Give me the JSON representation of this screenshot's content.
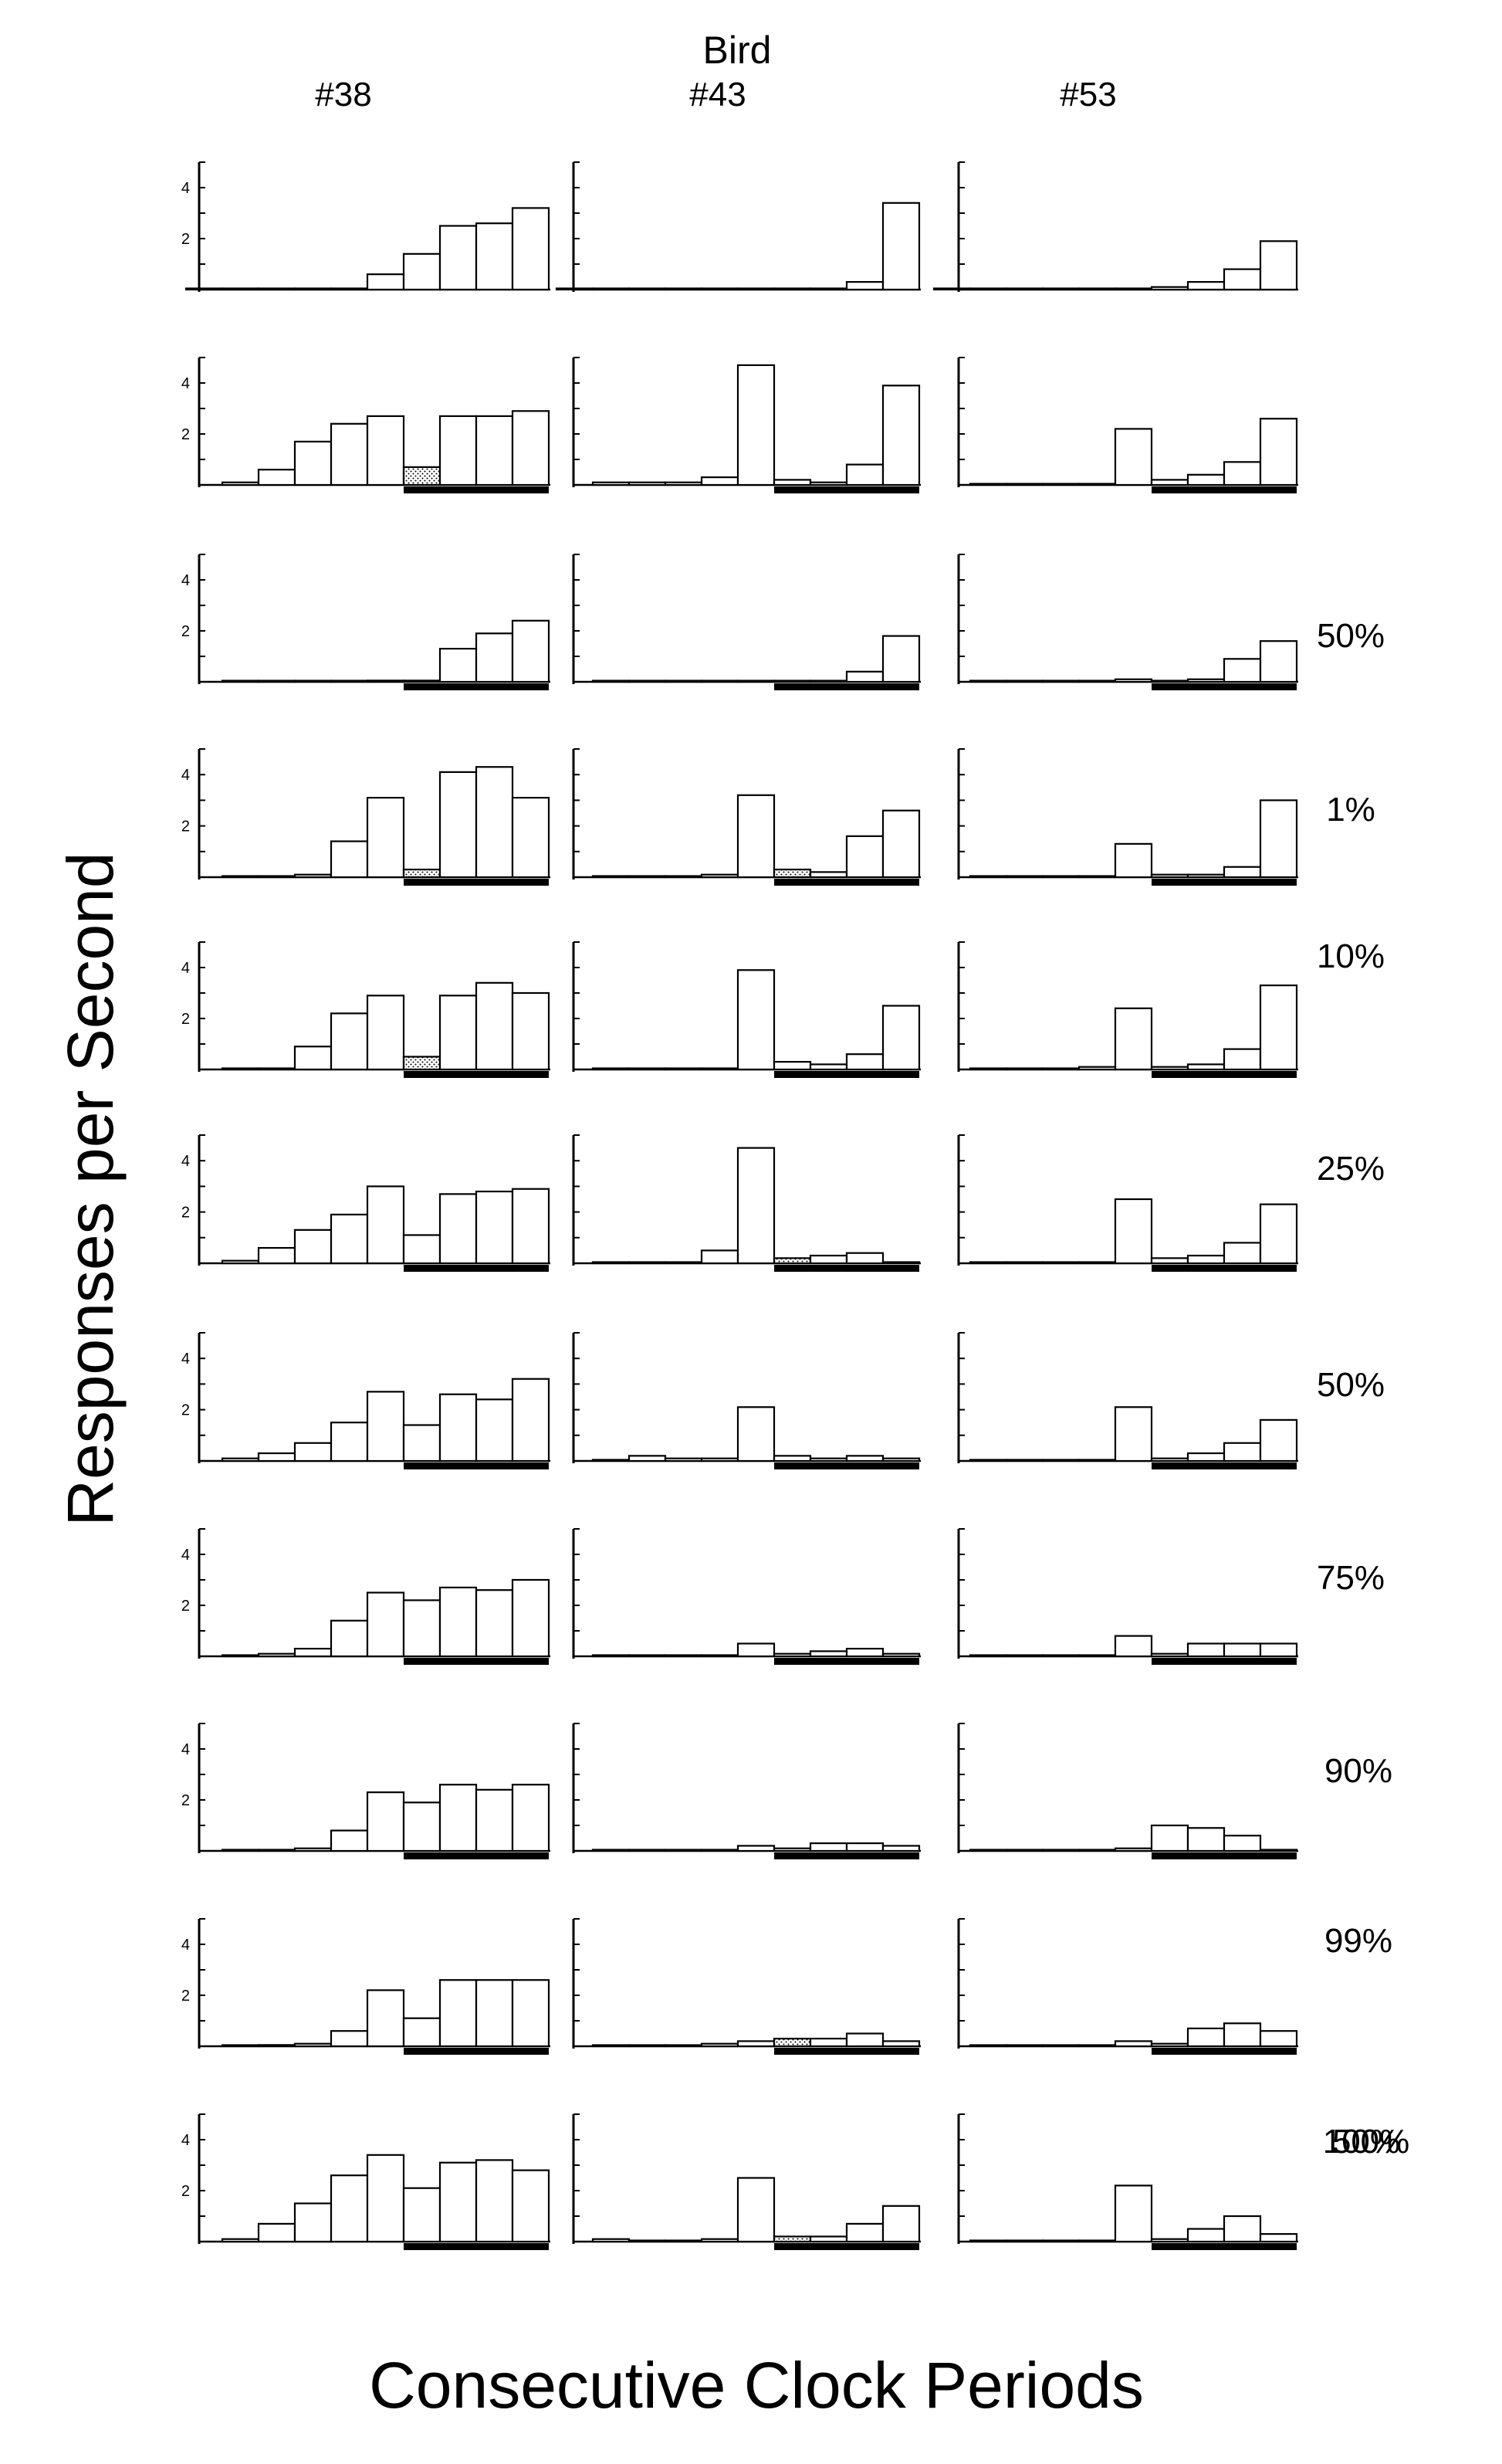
{
  "chart_data": {
    "type": "bar",
    "super_label": "Bird",
    "birds": [
      "#38",
      "#43",
      "#53"
    ],
    "xlabel": "Consecutive Clock Periods",
    "ylabel": "Responses per Second",
    "ylim": [
      0,
      5
    ],
    "yticks": [
      "2",
      "4"
    ],
    "grid": false,
    "rows": [
      {
        "condition": "",
        "panels": [
          {
            "values": [
              0,
              0,
              0,
              0,
              0,
              0.6,
              1.4,
              2.5,
              2.6,
              3.2
            ],
            "stippled": [],
            "bar_mark": false
          },
          {
            "values": [
              0,
              0,
              0,
              0,
              0,
              0,
              0,
              0,
              0.3,
              3.4
            ],
            "stippled": [],
            "bar_mark": false
          },
          {
            "values": [
              0,
              0,
              0,
              0,
              0,
              0,
              0.1,
              0.3,
              0.8,
              1.9
            ],
            "stippled": [],
            "bar_mark": false
          }
        ]
      },
      {
        "condition": "50%",
        "panels": [
          {
            "values": [
              0.1,
              0.6,
              1.7,
              2.4,
              2.7,
              0.7,
              2.7,
              2.7,
              2.9
            ],
            "stippled": [
              5
            ],
            "bar_mark": true
          },
          {
            "values": [
              0.1,
              0.1,
              0.1,
              0.3,
              4.7,
              0.2,
              0.1,
              0.8,
              3.9
            ],
            "stippled": [],
            "bar_mark": true
          },
          {
            "values": [
              0,
              0,
              0,
              0,
              2.2,
              0.2,
              0.4,
              0.9,
              2.6
            ],
            "stippled": [],
            "bar_mark": true
          }
        ]
      },
      {
        "condition": "1%",
        "panels": [
          {
            "values": [
              0,
              0,
              0,
              0,
              0.05,
              0.05,
              1.3,
              1.9,
              2.4
            ],
            "stippled": [],
            "bar_mark": true
          },
          {
            "values": [
              0,
              0,
              0,
              0,
              0,
              0,
              0,
              0.4,
              1.8
            ],
            "stippled": [],
            "bar_mark": true
          },
          {
            "values": [
              0,
              0,
              0,
              0,
              0.1,
              0,
              0.1,
              0.9,
              1.6
            ],
            "stippled": [],
            "bar_mark": true
          }
        ]
      },
      {
        "condition": "10%",
        "panels": [
          {
            "values": [
              0,
              0,
              0.1,
              1.4,
              3.1,
              0.3,
              4.1,
              4.3,
              3.1
            ],
            "stippled": [
              5
            ],
            "bar_mark": true
          },
          {
            "values": [
              0,
              0,
              0,
              0.1,
              3.2,
              0.3,
              0.2,
              1.6,
              2.6
            ],
            "stippled": [
              5
            ],
            "bar_mark": true
          },
          {
            "values": [
              0,
              0,
              0,
              0,
              1.3,
              0.1,
              0.1,
              0.4,
              3.0
            ],
            "stippled": [],
            "bar_mark": true
          }
        ]
      },
      {
        "condition": "25%",
        "panels": [
          {
            "values": [
              0,
              0,
              0.9,
              2.2,
              2.9,
              0.5,
              2.9,
              3.4,
              3.0
            ],
            "stippled": [
              5
            ],
            "bar_mark": true
          },
          {
            "values": [
              0,
              0,
              0,
              0,
              3.9,
              0.3,
              0.2,
              0.6,
              2.5
            ],
            "stippled": [],
            "bar_mark": true
          },
          {
            "values": [
              0,
              0,
              0,
              0.1,
              2.4,
              0.1,
              0.2,
              0.8,
              3.3
            ],
            "stippled": [],
            "bar_mark": true
          }
        ]
      },
      {
        "condition": "50%",
        "panels": [
          {
            "values": [
              0.1,
              0.6,
              1.3,
              1.9,
              3.0,
              1.1,
              2.7,
              2.8,
              2.9
            ],
            "stippled": [],
            "bar_mark": true
          },
          {
            "values": [
              0,
              0,
              0,
              0.5,
              4.5,
              0.2,
              0.3,
              0.4,
              0
            ],
            "stippled": [
              5
            ],
            "bar_mark": true
          },
          {
            "values": [
              0,
              0,
              0,
              0,
              2.5,
              0.2,
              0.3,
              0.8,
              2.3
            ],
            "stippled": [],
            "bar_mark": true
          }
        ]
      },
      {
        "condition": "75%",
        "panels": [
          {
            "values": [
              0.1,
              0.3,
              0.7,
              1.5,
              2.7,
              1.4,
              2.6,
              2.4,
              3.2
            ],
            "stippled": [],
            "bar_mark": true
          },
          {
            "values": [
              0,
              0.2,
              0.1,
              0.1,
              2.1,
              0.2,
              0.1,
              0.2,
              0.1
            ],
            "stippled": [],
            "bar_mark": true
          },
          {
            "values": [
              0,
              0,
              0,
              0,
              2.1,
              0.1,
              0.3,
              0.7,
              1.6
            ],
            "stippled": [],
            "bar_mark": true
          }
        ]
      },
      {
        "condition": "90%",
        "panels": [
          {
            "values": [
              0,
              0.1,
              0.3,
              1.4,
              2.5,
              2.2,
              2.7,
              2.6,
              3.0
            ],
            "stippled": [],
            "bar_mark": true
          },
          {
            "values": [
              0,
              0,
              0,
              0,
              0.5,
              0.1,
              0.2,
              0.3,
              0.1
            ],
            "stippled": [],
            "bar_mark": true
          },
          {
            "values": [
              0,
              0,
              0,
              0,
              0.8,
              0.1,
              0.5,
              0.5,
              0.5
            ],
            "stippled": [],
            "bar_mark": true
          }
        ]
      },
      {
        "condition": "99%",
        "panels": [
          {
            "values": [
              0,
              0,
              0.1,
              0.8,
              2.3,
              1.9,
              2.6,
              2.4,
              2.6
            ],
            "stippled": [],
            "bar_mark": true
          },
          {
            "values": [
              0,
              0,
              0,
              0,
              0.2,
              0.1,
              0.3,
              0.3,
              0.2
            ],
            "stippled": [],
            "bar_mark": true
          },
          {
            "values": [
              0,
              0,
              0,
              0,
              0.1,
              1.0,
              0.9,
              0.6,
              0
            ],
            "stippled": [],
            "bar_mark": true
          }
        ]
      },
      {
        "condition": "100%",
        "panels": [
          {
            "values": [
              0,
              0.05,
              0.1,
              0.6,
              2.2,
              1.1,
              2.6,
              2.6,
              2.6
            ],
            "stippled": [],
            "bar_mark": true
          },
          {
            "values": [
              0,
              0,
              0,
              0.1,
              0.2,
              0.3,
              0.3,
              0.5,
              0.2
            ],
            "stippled": [
              5
            ],
            "bar_mark": true
          },
          {
            "values": [
              0,
              0,
              0,
              0,
              0.2,
              0.1,
              0.7,
              0.9,
              0.6
            ],
            "stippled": [],
            "bar_mark": true
          }
        ]
      },
      {
        "condition": "50%",
        "panels": [
          {
            "values": [
              0.1,
              0.7,
              1.5,
              2.6,
              3.4,
              2.1,
              3.1,
              3.2,
              2.8
            ],
            "stippled": [],
            "bar_mark": true
          },
          {
            "values": [
              0.1,
              0,
              0,
              0.1,
              2.5,
              0.2,
              0.2,
              0.7,
              1.4
            ],
            "stippled": [
              5
            ],
            "bar_mark": true
          },
          {
            "values": [
              0,
              0,
              0,
              0,
              2.2,
              0.1,
              0.5,
              1.0,
              0.3
            ],
            "stippled": [],
            "bar_mark": true
          }
        ]
      }
    ]
  }
}
